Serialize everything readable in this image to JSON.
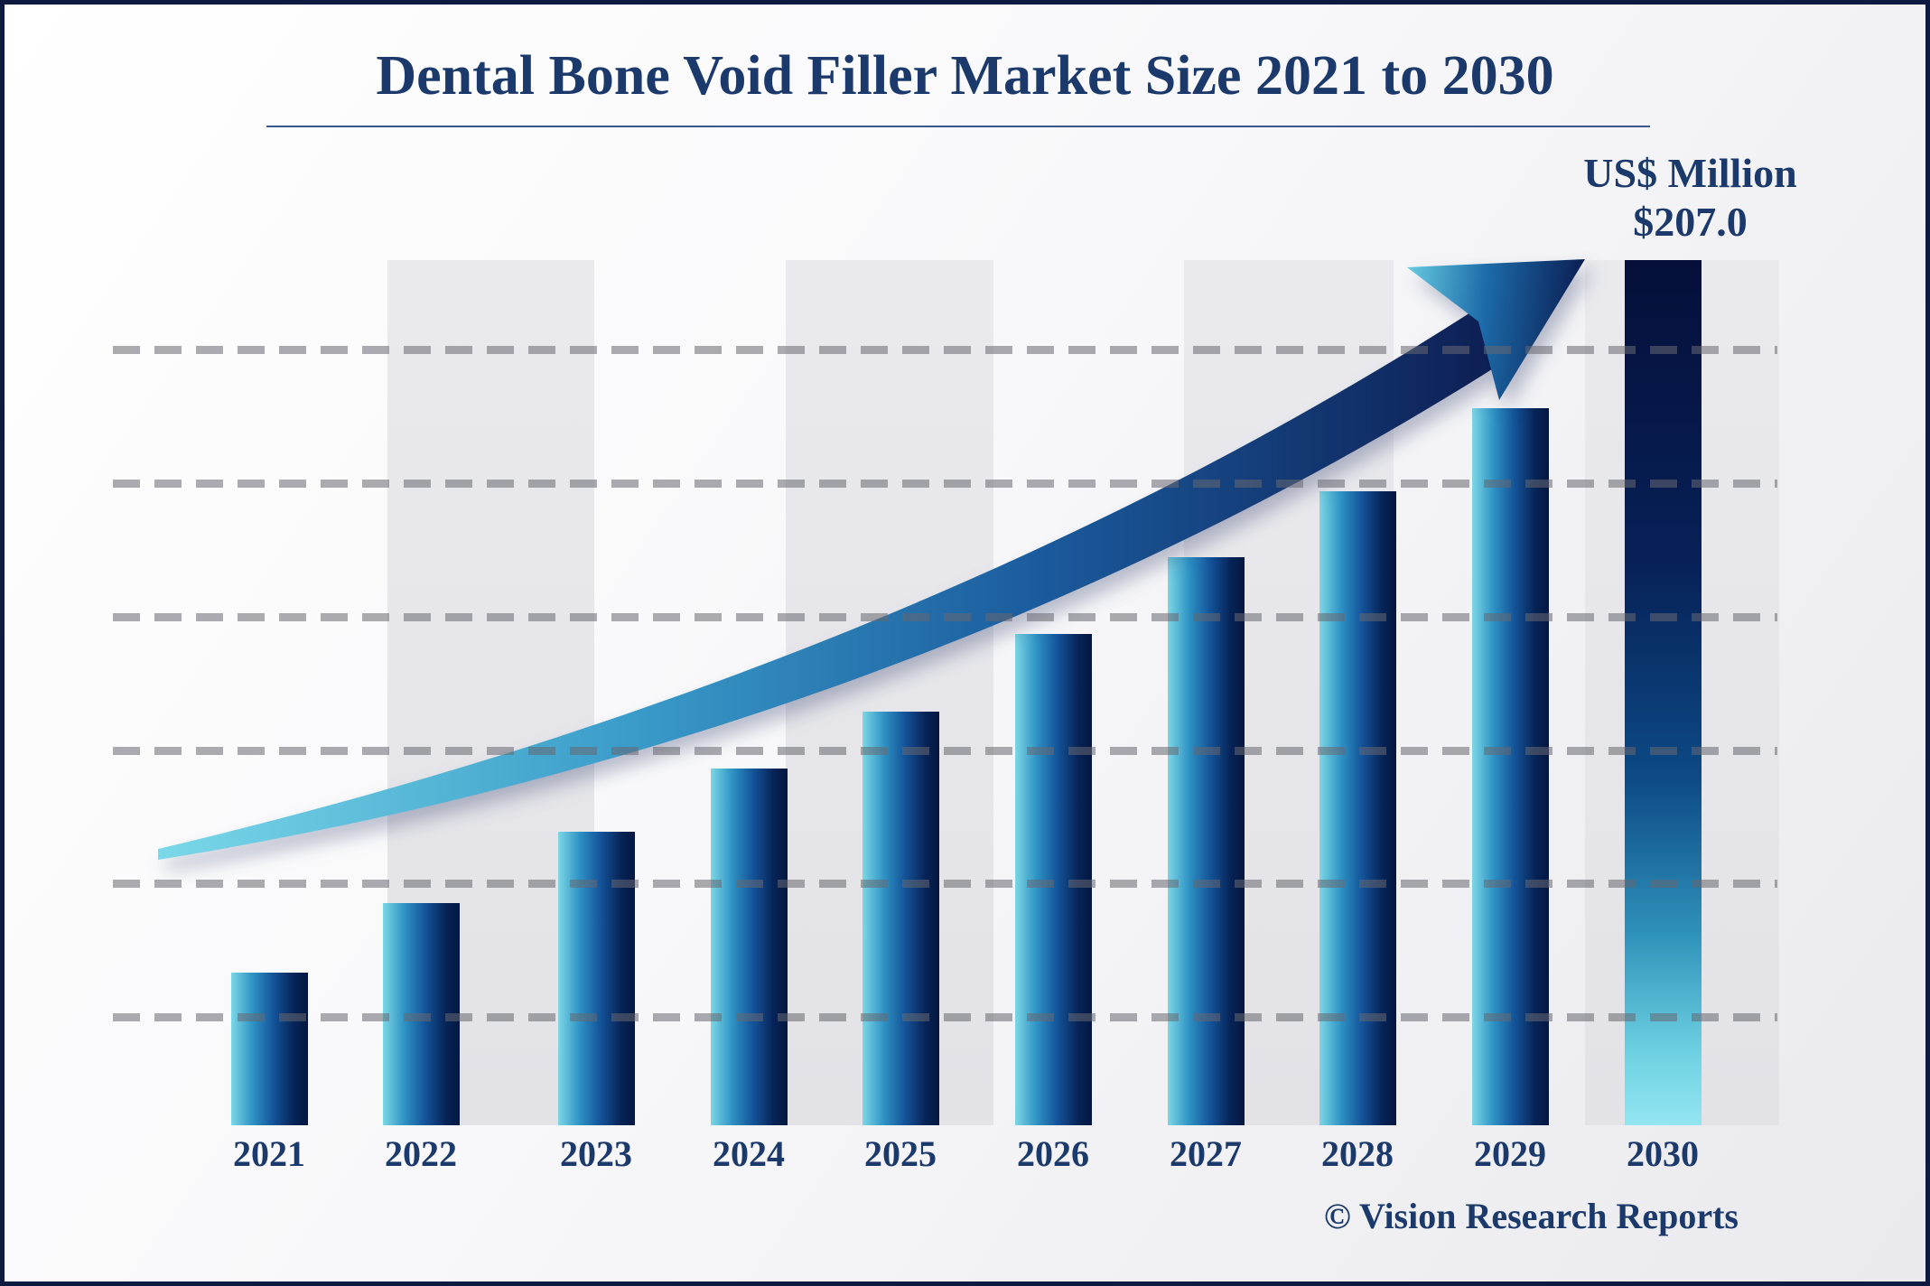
{
  "header": {
    "title": "Dental Bone Void Filler Market Size 2021 to 2030"
  },
  "annotation": {
    "unit_label": "US$ Million",
    "value_label": "$207.0"
  },
  "footer": {
    "watermark": "© Vision Research Reports"
  },
  "chart_data": {
    "type": "bar",
    "title": "Dental Bone Void Filler Market Size 2021 to 2030",
    "unit": "US$ Million",
    "categories": [
      "2021",
      "2022",
      "2023",
      "2024",
      "2025",
      "2026",
      "2027",
      "2028",
      "2029",
      "2030"
    ],
    "values": [
      36.5,
      53.2,
      70.2,
      85.3,
      99.0,
      117.6,
      135.9,
      151.7,
      171.6,
      207.0
    ],
    "values_estimated_from_bar_heights": true,
    "labeled_value": {
      "category": "2030",
      "label": "$207.0"
    },
    "xlabel": "",
    "ylabel": "",
    "ylim": [
      0,
      207
    ],
    "grid": "dashed-horizontal",
    "gridline_count": 6,
    "gridline_values_est": [
      25.9,
      57.9,
      89.9,
      121.7,
      153.6,
      185.6
    ],
    "legend": "none",
    "trend_arrow": "curved swoosh rising left-to-right ending in large arrowhead at 2030",
    "colors": {
      "bar_gradient": [
        "#7cd7e5",
        "#2e92c4",
        "#14549a",
        "#041740"
      ],
      "final_bar_gradient": [
        "#050f3a",
        "#0d4a86",
        "#93e6f1"
      ],
      "arrow_gradient": [
        "#7ad8e8",
        "#3a9cc9",
        "#1b5c9e",
        "#0d1d52"
      ],
      "text_navy": "#1b3a6b",
      "gridline_gray": "#a7a7ad",
      "stripe_gray": "#e5e5e9",
      "frame_border": "#0e1a40"
    }
  }
}
